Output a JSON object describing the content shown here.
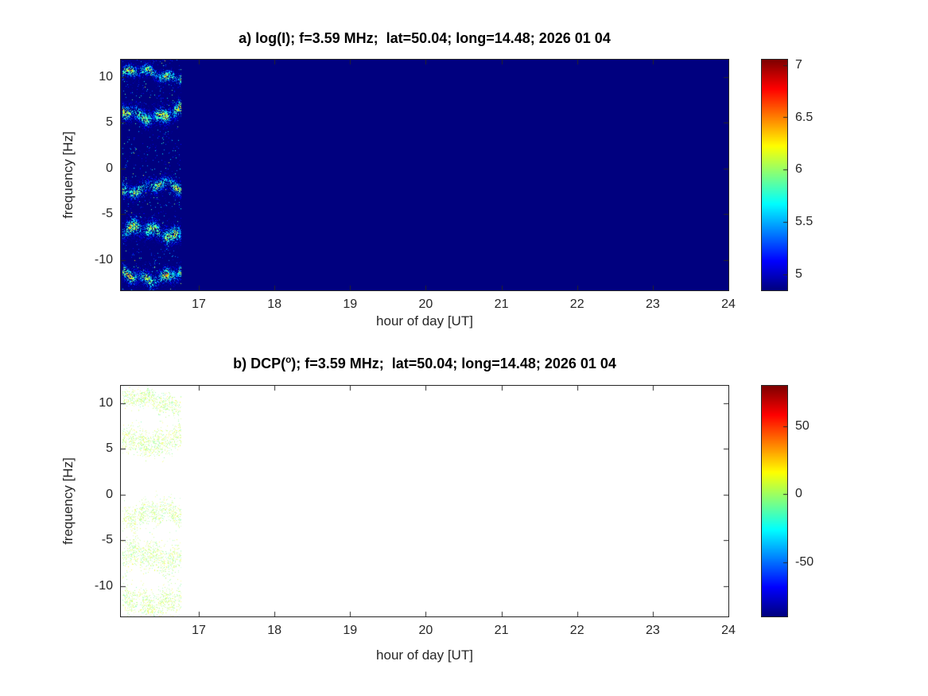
{
  "figure": {
    "background": "#ffffff",
    "axis_color": "#262626",
    "title_color": "#000000",
    "colormap": "jet"
  },
  "chart_data": [
    {
      "id": "a",
      "type": "heatmap",
      "title": "a) log(I); f=3.59 MHz;  lat=50.04; long=14.48; 2026 01 04",
      "xlabel": "hour of day [UT]",
      "ylabel": "frequency [Hz]",
      "xlim": [
        15.97,
        24
      ],
      "ylim": [
        -13.3,
        11.9
      ],
      "xticks": [
        17,
        18,
        19,
        20,
        21,
        22,
        23,
        24
      ],
      "yticks": [
        10,
        5,
        0,
        -5,
        -10
      ],
      "colorbar": {
        "min": 4.85,
        "max": 7.05,
        "ticks": [
          7,
          6.5,
          6,
          5.5,
          5
        ]
      },
      "no_data_fill": "colormap minimum (dark blue)",
      "data_time_range": [
        15.99,
        16.76
      ],
      "bands": [
        {
          "center_hz": 10.3,
          "sigma_hz": 0.55,
          "peak_value": 6.9
        },
        {
          "center_hz": 6.0,
          "sigma_hz": 0.75,
          "peak_value": 7.0
        },
        {
          "center_hz": -2.1,
          "sigma_hz": 0.65,
          "peak_value": 6.9
        },
        {
          "center_hz": -6.9,
          "sigma_hz": 0.8,
          "peak_value": 7.0
        },
        {
          "center_hz": -11.7,
          "sigma_hz": 0.7,
          "peak_value": 6.95
        }
      ]
    },
    {
      "id": "b",
      "type": "heatmap",
      "title_prefix": "b) DCP(",
      "title_sup": "o",
      "title_suffix": "); f=3.59 MHz;  lat=50.04; long=14.48; 2026 01 04",
      "xlabel": "hour of day [UT]",
      "ylabel": "frequency [Hz]",
      "xlim": [
        15.97,
        24
      ],
      "ylim": [
        -13.3,
        11.9
      ],
      "xticks": [
        17,
        18,
        19,
        20,
        21,
        22,
        23,
        24
      ],
      "yticks": [
        10,
        5,
        0,
        -5,
        -10
      ],
      "colorbar": {
        "min": -90,
        "max": 80,
        "ticks": [
          50,
          0,
          -50
        ]
      },
      "no_data_fill": "white",
      "data_time_range": [
        15.99,
        16.76
      ],
      "point_value_range_deg": [
        -12,
        18
      ],
      "bands": [
        {
          "center_hz": 10.2,
          "sigma_hz": 0.8
        },
        {
          "center_hz": 6.0,
          "sigma_hz": 1.1
        },
        {
          "center_hz": -2.2,
          "sigma_hz": 1.0
        },
        {
          "center_hz": -6.8,
          "sigma_hz": 1.2
        },
        {
          "center_hz": -11.6,
          "sigma_hz": 1.1
        }
      ]
    }
  ]
}
